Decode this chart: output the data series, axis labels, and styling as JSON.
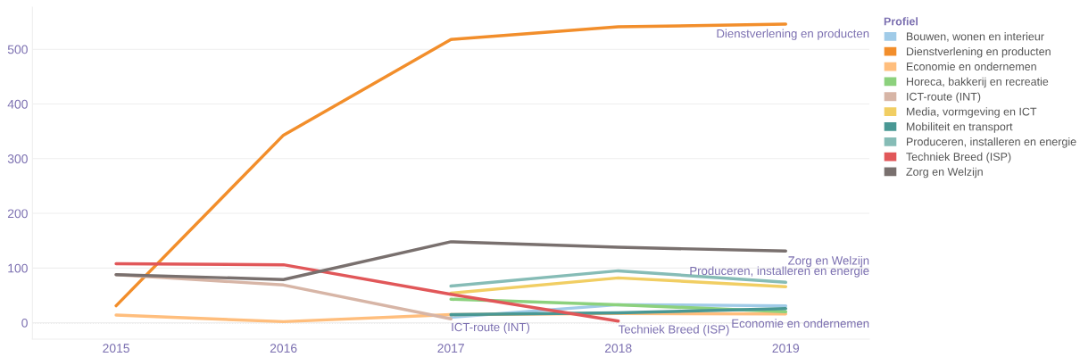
{
  "chart_data": {
    "type": "line",
    "legend_title": "Profiel",
    "x": [
      2015,
      2016,
      2017,
      2018,
      2019
    ],
    "series": [
      {
        "name": "Bouwen, wonen en interieur",
        "color": "#a0cbe8",
        "values": [
          null,
          null,
          10,
          33,
          31
        ]
      },
      {
        "name": "Dienstverlening en producten",
        "color": "#f28e2b",
        "values": [
          31,
          343,
          518,
          541,
          546
        ]
      },
      {
        "name": "Economie en ondernemen",
        "color": "#ffbe7d",
        "values": [
          14,
          2,
          15,
          17,
          16
        ]
      },
      {
        "name": "Horeca, bakkerij en recreatie",
        "color": "#8cd17d",
        "values": [
          null,
          null,
          43,
          33,
          20
        ]
      },
      {
        "name": "ICT-route (INT)",
        "color": "#d7b5a6",
        "values": [
          88,
          69,
          7,
          null,
          null
        ]
      },
      {
        "name": "Media, vormgeving en ICT",
        "color": "#f1ce63",
        "values": [
          null,
          null,
          54,
          82,
          66
        ]
      },
      {
        "name": "Mobiliteit en transport",
        "color": "#499894",
        "values": [
          null,
          null,
          15,
          18,
          26
        ]
      },
      {
        "name": "Produceren, installeren en energie",
        "color": "#86bcb6",
        "values": [
          null,
          null,
          67,
          95,
          74
        ]
      },
      {
        "name": "Techniek Breed (ISP)",
        "color": "#e15759",
        "values": [
          108,
          106,
          52,
          3,
          null
        ]
      },
      {
        "name": "Zorg en Welzijn",
        "color": "#79706e",
        "values": [
          88,
          79,
          148,
          138,
          131
        ]
      }
    ],
    "annotations": [
      {
        "text": "Dienstverlening en producten",
        "x": 2019,
        "y": 546
      },
      {
        "text": "Zorg en Welzijn",
        "x": 2019,
        "y": 131
      },
      {
        "text": "Produceren, installeren en energie",
        "x": 2019,
        "y": 74
      },
      {
        "text": "Economie en ondernemen",
        "x": 2019,
        "y": 16
      },
      {
        "text": "ICT-route (INT)",
        "x": 2017,
        "y": 7
      },
      {
        "text": "Techniek Breed (ISP)",
        "x": 2018,
        "y": 3
      }
    ],
    "ref_lines": [
      {
        "axis": "y",
        "value": 0,
        "label": null,
        "color": "#aaaaaa",
        "line_style": "dotted"
      }
    ],
    "xlim": [
      2014.5,
      2019.5
    ],
    "xticks": [
      2015,
      2016,
      2017,
      2018,
      2019
    ],
    "ylim": [
      -30,
      577
    ],
    "yticks": [
      0,
      100,
      200,
      300,
      400,
      500
    ],
    "grid": "y",
    "legend": "top right",
    "marker": "none",
    "line_style": "solid"
  }
}
